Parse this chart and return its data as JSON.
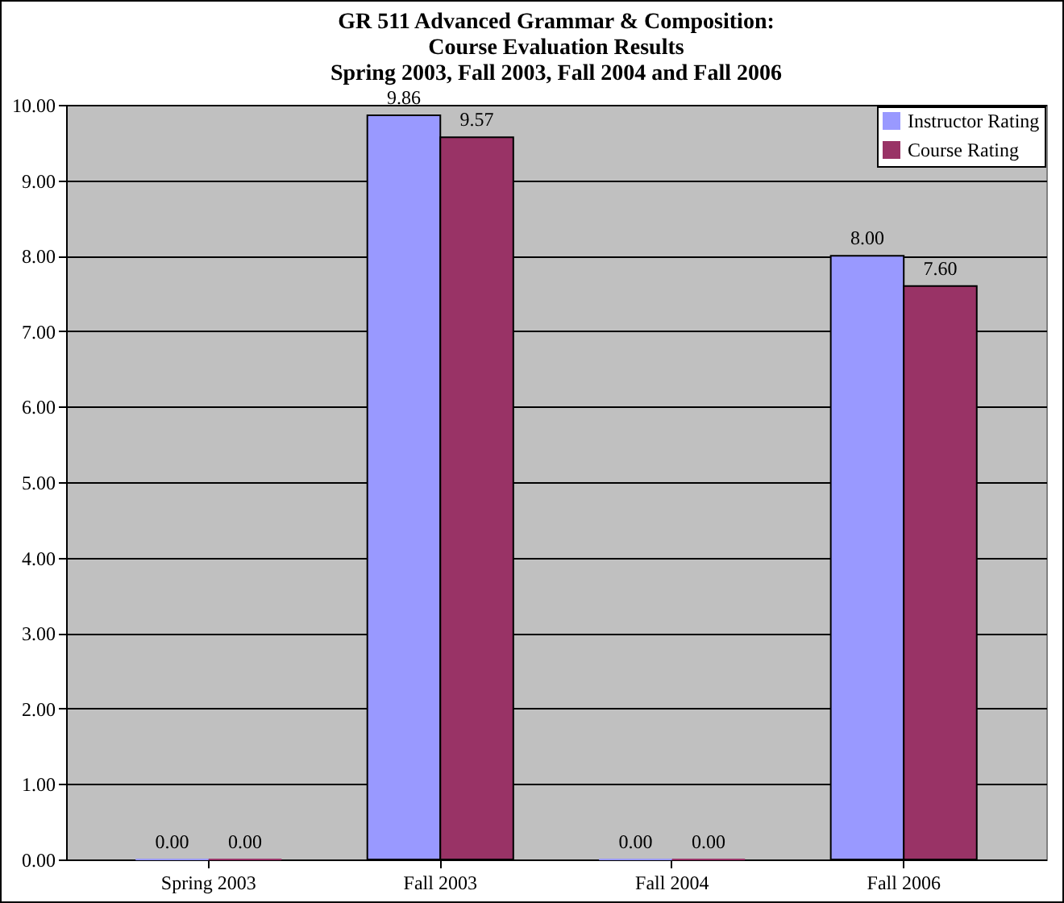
{
  "chart_data": {
    "type": "bar",
    "title": "GR 511 Advanced Grammar & Composition:\nCourse Evaluation Results\nSpring 2003,  Fall 2003, Fall 2004 and Fall 2006",
    "categories": [
      "Spring 2003",
      "Fall 2003",
      "Fall 2004",
      "Fall 2006"
    ],
    "series": [
      {
        "name": "Instructor Rating",
        "color": "#9999ff",
        "values": [
          0,
          9.86,
          0,
          8.0
        ],
        "value_labels": [
          "0.00",
          "9.86",
          "0.00",
          "8.00"
        ]
      },
      {
        "name": "Course Rating",
        "color": "#993366",
        "values": [
          0,
          9.57,
          0,
          7.6
        ],
        "value_labels": [
          "0.00",
          "9.57",
          "0.00",
          "7.60"
        ]
      }
    ],
    "ylim": [
      0,
      10
    ],
    "yticks": [
      {
        "value": 0,
        "label": "0.00"
      },
      {
        "value": 1,
        "label": "1.00"
      },
      {
        "value": 2,
        "label": "2.00"
      },
      {
        "value": 3,
        "label": "3.00"
      },
      {
        "value": 4,
        "label": "4.00"
      },
      {
        "value": 5,
        "label": "5.00"
      },
      {
        "value": 6,
        "label": "6.00"
      },
      {
        "value": 7,
        "label": "7.00"
      },
      {
        "value": 8,
        "label": "8.00"
      },
      {
        "value": 9,
        "label": "9.00"
      },
      {
        "value": 10,
        "label": "10.00"
      }
    ],
    "grid": "y",
    "legend": "top right"
  }
}
